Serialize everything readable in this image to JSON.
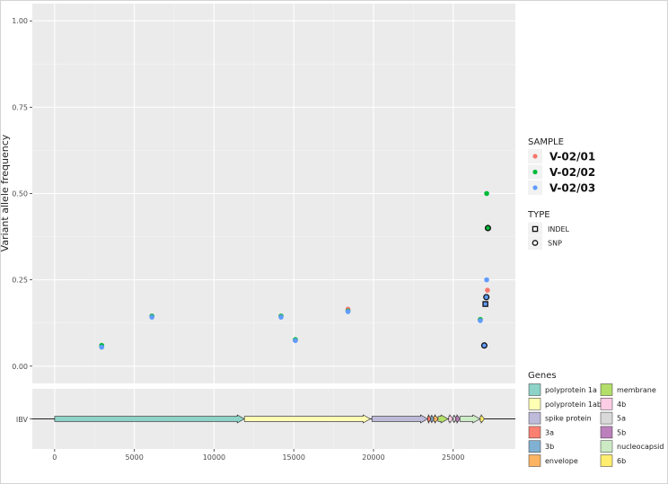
{
  "chart_data": {
    "type": "scatter",
    "ylabel": "Variant allele frequency",
    "xlim": [
      -1400,
      28900
    ],
    "ylim": [
      -0.05,
      1.05
    ],
    "x_ticks": [
      0,
      5000,
      10000,
      15000,
      20000,
      25000
    ],
    "y_ticks": [
      0.0,
      0.25,
      0.5,
      0.75,
      1.0
    ],
    "y_tick_labels": [
      "0.00",
      "0.25",
      "0.50",
      "0.75",
      "1.00"
    ],
    "grid": true,
    "legend_placement": "right",
    "color_legend": {
      "title": "SAMPLE",
      "entries": [
        {
          "name": "V-02/01",
          "color": "#F8766D"
        },
        {
          "name": "V-02/02",
          "color": "#00BA38"
        },
        {
          "name": "V-02/03",
          "color": "#619CFF"
        }
      ]
    },
    "shape_legend": {
      "title": "TYPE",
      "entries": [
        {
          "name": "INDEL",
          "shape": "square"
        },
        {
          "name": "SNP",
          "shape": "circle"
        }
      ]
    },
    "series": [
      {
        "name": "V-02/01",
        "color": "#F8766D",
        "points": [
          {
            "x": 2950,
            "y": 0.06
          },
          {
            "x": 6100,
            "y": 0.145
          },
          {
            "x": 14200,
            "y": 0.145
          },
          {
            "x": 15100,
            "y": 0.075
          },
          {
            "x": 18400,
            "y": 0.165
          },
          {
            "x": 26700,
            "y": 0.135
          },
          {
            "x": 27150,
            "y": 0.22
          }
        ]
      },
      {
        "name": "V-02/02",
        "color": "#00BA38",
        "points": [
          {
            "x": 2950,
            "y": 0.06
          },
          {
            "x": 6100,
            "y": 0.145
          },
          {
            "x": 14200,
            "y": 0.145
          },
          {
            "x": 15100,
            "y": 0.077
          },
          {
            "x": 18400,
            "y": 0.16
          },
          {
            "x": 26700,
            "y": 0.135
          },
          {
            "x": 27100,
            "y": 0.5
          },
          {
            "x": 27180,
            "y": 0.4,
            "type": "SNP"
          }
        ]
      },
      {
        "name": "V-02/03",
        "color": "#619CFF",
        "points": [
          {
            "x": 2950,
            "y": 0.055
          },
          {
            "x": 6100,
            "y": 0.142
          },
          {
            "x": 14200,
            "y": 0.142
          },
          {
            "x": 15100,
            "y": 0.074
          },
          {
            "x": 18400,
            "y": 0.158
          },
          {
            "x": 26700,
            "y": 0.132
          },
          {
            "x": 27100,
            "y": 0.25
          },
          {
            "x": 27080,
            "y": 0.2,
            "type": "SNP"
          },
          {
            "x": 27020,
            "y": 0.18,
            "type": "INDEL"
          },
          {
            "x": 26950,
            "y": 0.06,
            "type": "SNP"
          }
        ]
      }
    ],
    "genome_track": {
      "label": "IBV",
      "length": 27700,
      "legend_title": "Genes",
      "genes": [
        {
          "name": "polyprotein 1a",
          "start": 0,
          "end": 11900,
          "color": "#8DD3C7"
        },
        {
          "name": "polyprotein 1ab",
          "start": 11900,
          "end": 19800,
          "color": "#FFFFB3"
        },
        {
          "name": "spike protein",
          "start": 19900,
          "end": 23400,
          "color": "#BEBADA"
        },
        {
          "name": "3a",
          "start": 23400,
          "end": 23600,
          "color": "#FB8072"
        },
        {
          "name": "3b",
          "start": 23600,
          "end": 23780,
          "color": "#80B1D3"
        },
        {
          "name": "envelope",
          "start": 23780,
          "end": 24050,
          "color": "#FDB462"
        },
        {
          "name": "membrane",
          "start": 24050,
          "end": 24680,
          "color": "#B3DE69"
        },
        {
          "name": "4b",
          "start": 24720,
          "end": 24980,
          "color": "#FCCDE5"
        },
        {
          "name": "5a",
          "start": 25000,
          "end": 25180,
          "color": "#D9D9D9"
        },
        {
          "name": "5b",
          "start": 25180,
          "end": 25420,
          "color": "#BC80BD"
        },
        {
          "name": "nucleocapsid",
          "start": 25420,
          "end": 26680,
          "color": "#CCEBC5"
        },
        {
          "name": "6b",
          "start": 26700,
          "end": 26950,
          "color": "#FFED6F"
        }
      ]
    }
  }
}
